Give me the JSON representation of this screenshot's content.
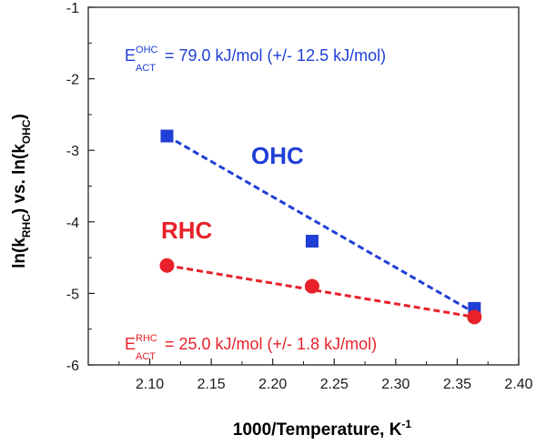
{
  "chart_data": {
    "type": "scatter",
    "xlim": [
      2.05,
      2.4
    ],
    "ylim": [
      -6,
      -1
    ],
    "x_ticks": [
      "2.10",
      "2.15",
      "2.20",
      "2.25",
      "2.30",
      "2.35",
      "2.40"
    ],
    "x_tick_values": [
      2.1,
      2.15,
      2.2,
      2.25,
      2.3,
      2.35,
      2.4
    ],
    "y_ticks": [
      "-1",
      "-2",
      "-3",
      "-4",
      "-5",
      "-6"
    ],
    "y_tick_values": [
      -1,
      -2,
      -3,
      -4,
      -5,
      -6
    ],
    "xlabel": {
      "base": "1000/Temperature, K",
      "sup": "-1"
    },
    "ylabel": {
      "p1": "ln(k",
      "sub1": "RHC",
      "p2": ") vs. ln(k",
      "sub2": "OHC",
      "p3": ")"
    },
    "grid": false,
    "series": [
      {
        "name": "OHC",
        "color": "#1f3fd6",
        "marker": "square",
        "x": [
          2.114,
          2.232,
          2.364
        ],
        "y": [
          -2.8,
          -4.27,
          -5.21
        ],
        "fit": {
          "x": [
            2.114,
            2.364
          ],
          "y": [
            -2.8,
            -5.27
          ]
        }
      },
      {
        "name": "RHC",
        "color": "#e8212a",
        "marker": "circle",
        "x": [
          2.114,
          2.232,
          2.364
        ],
        "y": [
          -4.61,
          -4.9,
          -5.33
        ],
        "fit": {
          "x": [
            2.114,
            2.364
          ],
          "y": [
            -4.61,
            -5.33
          ]
        }
      }
    ],
    "annotations": {
      "ohc": {
        "E": "E",
        "sup": "OHC",
        "sub": "ACT",
        "text": " = 79.0 kJ/mol (+/- 12.5 kJ/mol)"
      },
      "rhc": {
        "E": "E",
        "sup": "RHC",
        "sub": "ACT",
        "text": " = 25.0 kJ/mol (+/- 1.8 kJ/mol)"
      }
    }
  }
}
